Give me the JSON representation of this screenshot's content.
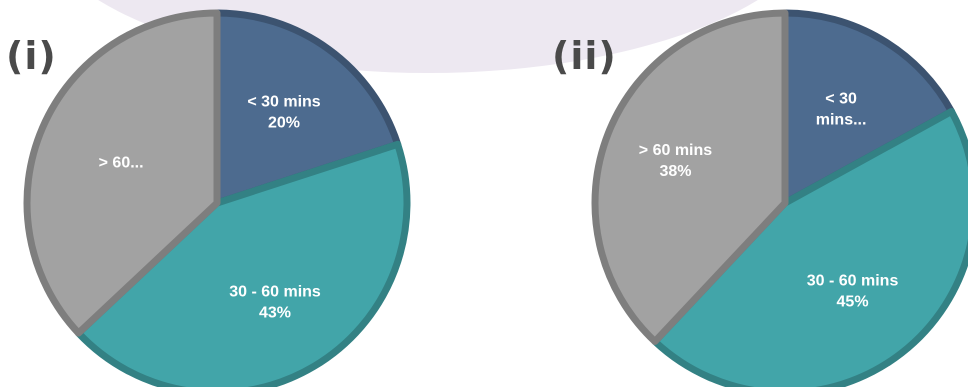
{
  "panels": [
    {
      "label": "(i)"
    },
    {
      "label": "(ii)"
    }
  ],
  "colors": {
    "backdrop": "#ede8f1",
    "under_30": "#4d6b8f",
    "between_30_60": "#42a5a9",
    "over_60": "#a2a2a2"
  },
  "chart_data": [
    {
      "type": "pie",
      "title": "",
      "slices": [
        {
          "category": "< 30 mins",
          "value": 20,
          "label_lines": [
            "< 30 mins",
            "20%"
          ],
          "color": "#4d6b8f"
        },
        {
          "category": "30 - 60 mins",
          "value": 43,
          "label_lines": [
            "30 - 60 mins",
            "43%"
          ],
          "color": "#42a5a9"
        },
        {
          "category": "> 60 mins",
          "value": 37,
          "label_lines": [
            "> 60..."
          ],
          "color": "#a2a2a2"
        }
      ],
      "start_angle_deg": 0,
      "direction": "clockwise",
      "legend": "none"
    },
    {
      "type": "pie",
      "title": "",
      "slices": [
        {
          "category": "< 30 mins",
          "value": 17,
          "label_lines": [
            "< 30",
            "mins..."
          ],
          "color": "#4d6b8f"
        },
        {
          "category": "30 - 60 mins",
          "value": 45,
          "label_lines": [
            "30 - 60 mins",
            "45%"
          ],
          "color": "#42a5a9"
        },
        {
          "category": "> 60 mins",
          "value": 38,
          "label_lines": [
            "> 60 mins",
            "38%"
          ],
          "color": "#a2a2a2"
        }
      ],
      "start_angle_deg": 0,
      "direction": "clockwise",
      "legend": "none"
    }
  ]
}
